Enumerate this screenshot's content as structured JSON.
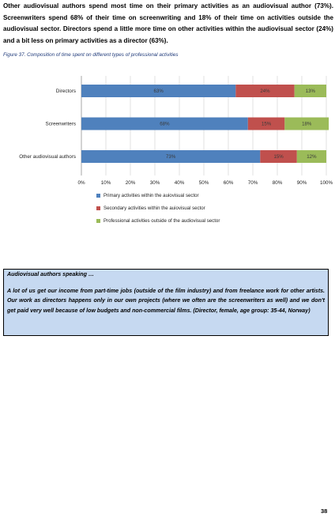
{
  "intro_text": "Other audiovisual authors spend most time on their primary activities as an audiovisual author (73%). Screenwriters spend 68% of their time on screenwriting and 18% of their time on activities outside the audiovisual sector. Directors spend a little more time on other activities within the audiovisual sector (24%) and a bit less on primary activities as a director (63%).",
  "figure_caption": "Figure 37. Composition of time spent on different types of professional activities",
  "chart_data": {
    "type": "bar",
    "orientation": "horizontal",
    "stacked": true,
    "categories": [
      "Directors",
      "Screenwriters",
      "Other audiovisual authors"
    ],
    "series": [
      {
        "name": "Primary activities within the auiovisual sector",
        "values": [
          63,
          68,
          73
        ],
        "labels": [
          "63%",
          "68%",
          "73%"
        ],
        "color": "#4f81bd"
      },
      {
        "name": "Secondary activities within the auiovisual sector",
        "values": [
          24,
          15,
          15
        ],
        "labels": [
          "24%",
          "15%",
          "15%"
        ],
        "color": "#c0504d"
      },
      {
        "name": "Professional activities outside of the audiovisual sector",
        "values": [
          13,
          18,
          12
        ],
        "labels": [
          "13%",
          "18%",
          "12%"
        ],
        "color": "#9bbb59"
      }
    ],
    "xticks": [
      "0%",
      "10%",
      "20%",
      "30%",
      "40%",
      "50%",
      "60%",
      "70%",
      "80%",
      "90%",
      "100%"
    ],
    "xlim": [
      0,
      100
    ],
    "grid": true,
    "legend_position": "bottom"
  },
  "quote_box": {
    "title": "Audiovisual authors speaking …",
    "text": "A lot of us get our income from part-time jobs (outside of the film industry) and from freelance work for other artists. Our work as directors happens only in our own projects (where we often are the screenwriters as well) and we don't get paid very well because of low budgets and non-commercial films. (Director, female, age group: 35-44, Norway)"
  },
  "page_number": "38"
}
